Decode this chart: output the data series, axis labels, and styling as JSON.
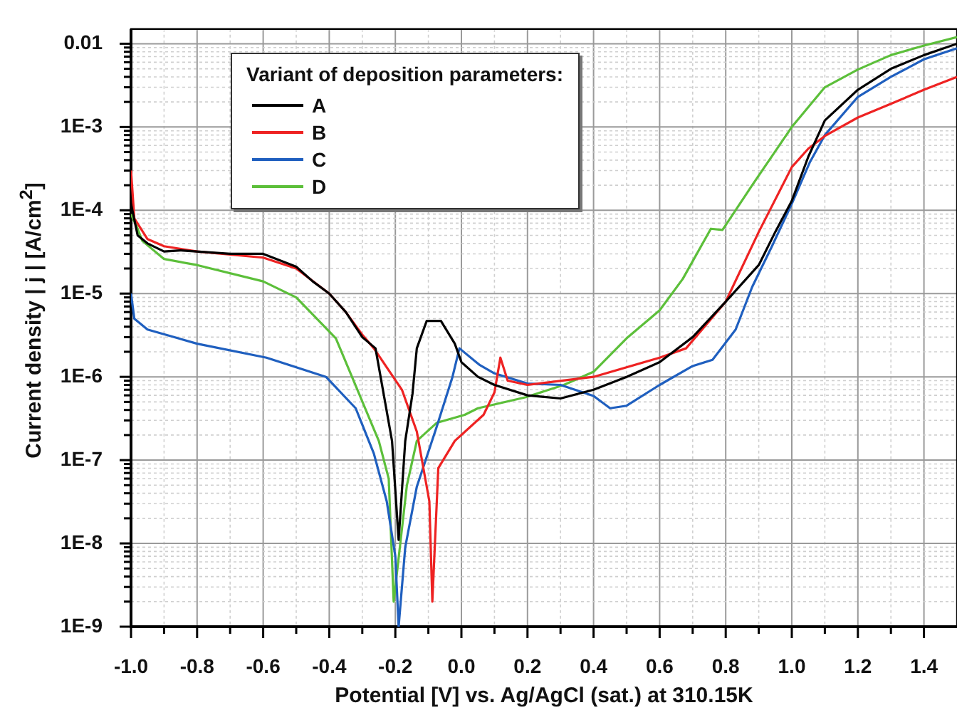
{
  "chart_data": {
    "type": "line",
    "xlabel": "Potential [V] vs. Ag/AgCl (sat.) at 310.15K",
    "ylabel": "Current density | j | [A/cm$^{2}$]",
    "legend_title": "Variant of deposition parameters:",
    "legend": "top left",
    "grid": true,
    "log": "y",
    "xlim": [
      -1.0,
      1.5
    ],
    "ylim": [
      1e-09,
      0.015
    ],
    "xticks": [
      {
        "value": -1.0,
        "label": "-1.0"
      },
      {
        "value": -0.9,
        "label": null
      },
      -0.8,
      {
        "value": -0.7,
        "label": null
      },
      -0.6,
      {
        "value": -0.5,
        "label": null
      },
      -0.4,
      {
        "value": -0.3,
        "label": null
      },
      -0.2,
      {
        "value": -0.1,
        "label": null
      },
      {
        "value": 0.0,
        "label": "0.0"
      },
      {
        "value": 0.1,
        "label": null
      },
      0.2,
      {
        "value": 0.3,
        "label": null
      },
      0.4,
      {
        "value": 0.5,
        "label": null
      },
      0.6,
      {
        "value": 0.7,
        "label": null
      },
      0.8,
      {
        "value": 0.9,
        "label": null
      },
      {
        "value": 1.0,
        "label": "1.0"
      },
      {
        "value": 1.1,
        "label": null
      },
      1.2,
      {
        "value": 1.3,
        "label": null
      },
      1.4
    ],
    "yticks": [
      {
        "value": 1e-09,
        "label": "1E-9"
      },
      {
        "value": 2e-09,
        "label": null
      },
      {
        "value": 3e-09,
        "label": null
      },
      {
        "value": 4e-09,
        "label": null
      },
      {
        "value": 5e-09,
        "label": null
      },
      {
        "value": 6e-09,
        "label": null
      },
      {
        "value": 7e-09,
        "label": null
      },
      {
        "value": 8e-09,
        "label": null
      },
      {
        "value": 9e-09,
        "label": null
      },
      {
        "value": 1e-08,
        "label": "1E-8"
      },
      {
        "value": 2e-08,
        "label": null
      },
      {
        "value": 3e-08,
        "label": null
      },
      {
        "value": 4e-08,
        "label": null
      },
      {
        "value": 5e-08,
        "label": null
      },
      {
        "value": 6e-08,
        "label": null
      },
      {
        "value": 7e-08,
        "label": null
      },
      {
        "value": 8e-08,
        "label": null
      },
      {
        "value": 9e-08,
        "label": null
      },
      {
        "value": 1e-07,
        "label": "1E-7"
      },
      {
        "value": 2e-07,
        "label": null
      },
      {
        "value": 3e-07,
        "label": null
      },
      {
        "value": 4e-07,
        "label": null
      },
      {
        "value": 5e-07,
        "label": null
      },
      {
        "value": 6e-07,
        "label": null
      },
      {
        "value": 7e-07,
        "label": null
      },
      {
        "value": 8e-07,
        "label": null
      },
      {
        "value": 9e-07,
        "label": null
      },
      {
        "value": 1e-06,
        "label": "1E-6"
      },
      {
        "value": 2e-06,
        "label": null
      },
      {
        "value": 3e-06,
        "label": null
      },
      {
        "value": 4e-06,
        "label": null
      },
      {
        "value": 5e-06,
        "label": null
      },
      {
        "value": 6e-06,
        "label": null
      },
      {
        "value": 7e-06,
        "label": null
      },
      {
        "value": 8e-06,
        "label": null
      },
      {
        "value": 9e-06,
        "label": null
      },
      {
        "value": 1e-05,
        "label": "1E-5"
      },
      {
        "value": 2e-05,
        "label": null
      },
      {
        "value": 3e-05,
        "label": null
      },
      {
        "value": 4e-05,
        "label": null
      },
      {
        "value": 5e-05,
        "label": null
      },
      {
        "value": 6e-05,
        "label": null
      },
      {
        "value": 7e-05,
        "label": null
      },
      {
        "value": 8e-05,
        "label": null
      },
      {
        "value": 9e-05,
        "label": null
      },
      {
        "value": 0.0001,
        "label": "1E-4"
      },
      {
        "value": 0.0002,
        "label": null
      },
      {
        "value": 0.0003,
        "label": null
      },
      {
        "value": 0.0004,
        "label": null
      },
      {
        "value": 0.0005,
        "label": null
      },
      {
        "value": 0.0006,
        "label": null
      },
      {
        "value": 0.0007,
        "label": null
      },
      {
        "value": 0.0008,
        "label": null
      },
      {
        "value": 0.0009,
        "label": null
      },
      {
        "value": 0.001,
        "label": "1E-3"
      },
      {
        "value": 0.002,
        "label": null
      },
      {
        "value": 0.003,
        "label": null
      },
      {
        "value": 0.004,
        "label": null
      },
      {
        "value": 0.005,
        "label": null
      },
      {
        "value": 0.006,
        "label": null
      },
      {
        "value": 0.007,
        "label": null
      },
      {
        "value": 0.008,
        "label": null
      },
      {
        "value": 0.009,
        "label": null
      },
      0.01
    ],
    "series": [
      {
        "name": "A",
        "color": "#000000",
        "x": [
          -1.0,
          -0.98,
          -0.95,
          -0.9,
          -0.85,
          -0.7,
          -0.6,
          -0.5,
          -0.45,
          -0.4,
          -0.35,
          -0.3,
          -0.26,
          -0.21,
          -0.19,
          -0.17,
          -0.148,
          -0.135,
          -0.105,
          -0.062,
          -0.02,
          0.0,
          0.05,
          0.1,
          0.2,
          0.3,
          0.4,
          0.5,
          0.6,
          0.7,
          0.8,
          0.9,
          0.95,
          1.0,
          1.05,
          1.1,
          1.2,
          1.3,
          1.4,
          1.5
        ],
        "values": [
          0.00012,
          5e-05,
          4e-05,
          3.2e-05,
          3.3e-05,
          3e-05,
          3e-05,
          2.1e-05,
          1.4e-05,
          1e-05,
          6e-06,
          3e-06,
          2.2e-06,
          1.7e-07,
          1.1e-08,
          1.7e-07,
          6.3e-07,
          2.2e-06,
          4.7e-06,
          4.7e-06,
          2.5e-06,
          1.5e-06,
          1e-06,
          8e-07,
          6e-07,
          5.5e-07,
          7e-07,
          1e-06,
          1.5e-06,
          3e-06,
          8e-06,
          2.2e-05,
          5.5e-05,
          0.00013,
          0.00044,
          0.0012,
          0.0028,
          0.005,
          0.0073,
          0.01
        ]
      },
      {
        "name": "B",
        "color": "#ee2222",
        "x": [
          -1.0,
          -0.99,
          -0.95,
          -0.9,
          -0.8,
          -0.6,
          -0.5,
          -0.4,
          -0.35,
          -0.3,
          -0.265,
          -0.18,
          -0.135,
          -0.097,
          -0.088,
          -0.07,
          -0.02,
          0.067,
          0.1,
          0.118,
          0.14,
          0.2,
          0.4,
          0.6,
          0.68,
          0.8,
          0.9,
          1.0,
          1.05,
          1.1,
          1.2,
          1.3,
          1.4,
          1.5
        ],
        "values": [
          0.0003,
          8e-05,
          4.5e-05,
          3.7e-05,
          3.2e-05,
          2.7e-05,
          2e-05,
          1e-05,
          6e-06,
          3.2e-06,
          2.2e-06,
          7e-07,
          2.2e-07,
          3.2e-08,
          2e-09,
          8e-08,
          1.7e-07,
          3.5e-07,
          6.5e-07,
          1.7e-06,
          9e-07,
          8e-07,
          1e-06,
          1.7e-06,
          2.2e-06,
          8e-06,
          5.5e-05,
          0.00033,
          0.00055,
          0.00078,
          0.0013,
          0.0019,
          0.0028,
          0.004
        ]
      },
      {
        "name": "C",
        "color": "#1f5fbf",
        "x": [
          -1.0,
          -0.99,
          -0.95,
          -0.8,
          -0.59,
          -0.41,
          -0.32,
          -0.265,
          -0.226,
          -0.2,
          -0.19,
          -0.17,
          -0.135,
          -0.075,
          -0.027,
          -0.006,
          0.054,
          0.1,
          0.2,
          0.3,
          0.4,
          0.45,
          0.5,
          0.6,
          0.7,
          0.76,
          0.83,
          0.88,
          0.94,
          1.0,
          1.055,
          1.1,
          1.2,
          1.3,
          1.4,
          1.5
        ],
        "values": [
          1e-05,
          5e-06,
          3.7e-06,
          2.5e-06,
          1.7e-06,
          1e-06,
          4.2e-07,
          1.2e-07,
          3.2e-08,
          7e-09,
          1e-09,
          9e-09,
          4.8e-08,
          2.5e-07,
          1e-06,
          2.2e-06,
          1.4e-06,
          1.1e-06,
          8.3e-07,
          8e-07,
          5.9e-07,
          4.2e-07,
          4.5e-07,
          8e-07,
          1.35e-06,
          1.6e-06,
          3.7e-06,
          1.2e-05,
          3.7e-05,
          0.00012,
          0.00038,
          0.0008,
          0.0023,
          0.004,
          0.0065,
          0.0088
        ]
      },
      {
        "name": "D",
        "color": "#5cbf3a",
        "x": [
          -1.0,
          -0.98,
          -0.966,
          -0.9,
          -0.8,
          -0.6,
          -0.5,
          -0.38,
          -0.31,
          -0.25,
          -0.22,
          -0.205,
          -0.165,
          -0.135,
          -0.075,
          0.01,
          0.05,
          0.195,
          0.31,
          0.4,
          0.5,
          0.6,
          0.67,
          0.755,
          0.79,
          0.88,
          1.0,
          1.1,
          1.2,
          1.3,
          1.4,
          1.5
        ],
        "values": [
          9e-05,
          6e-05,
          4.3e-05,
          2.6e-05,
          2.2e-05,
          1.4e-05,
          9e-06,
          2.9e-06,
          6.3e-07,
          1.7e-07,
          6e-08,
          2e-09,
          5e-08,
          1.7e-07,
          2.8e-07,
          3.5e-07,
          4.2e-07,
          5.7e-07,
          8e-07,
          1.15e-06,
          2.9e-06,
          6.3e-06,
          1.5e-05,
          6e-05,
          5.8e-05,
          0.0002,
          0.001,
          0.003,
          0.0049,
          0.0073,
          0.0095,
          0.012
        ]
      }
    ]
  }
}
